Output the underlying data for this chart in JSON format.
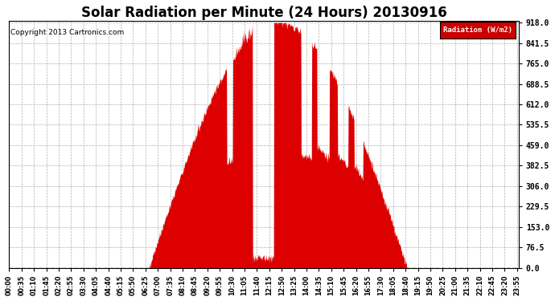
{
  "title": "Solar Radiation per Minute (24 Hours) 20130916",
  "copyright": "Copyright 2013 Cartronics.com",
  "legend_label": "Radiation (W/m2)",
  "yticks": [
    0.0,
    76.5,
    153.0,
    229.5,
    306.0,
    382.5,
    459.0,
    535.5,
    612.0,
    688.5,
    765.0,
    841.5,
    918.0
  ],
  "ymax": 918.0,
  "fill_color": "#dd0000",
  "background_color": "#ffffff",
  "grid_color": "#b0b0b0",
  "title_fontsize": 12,
  "legend_bg_color": "#cc0000",
  "legend_text_color": "#ffffff",
  "sunrise": 395,
  "sunset": 1125,
  "xtick_step": 35
}
